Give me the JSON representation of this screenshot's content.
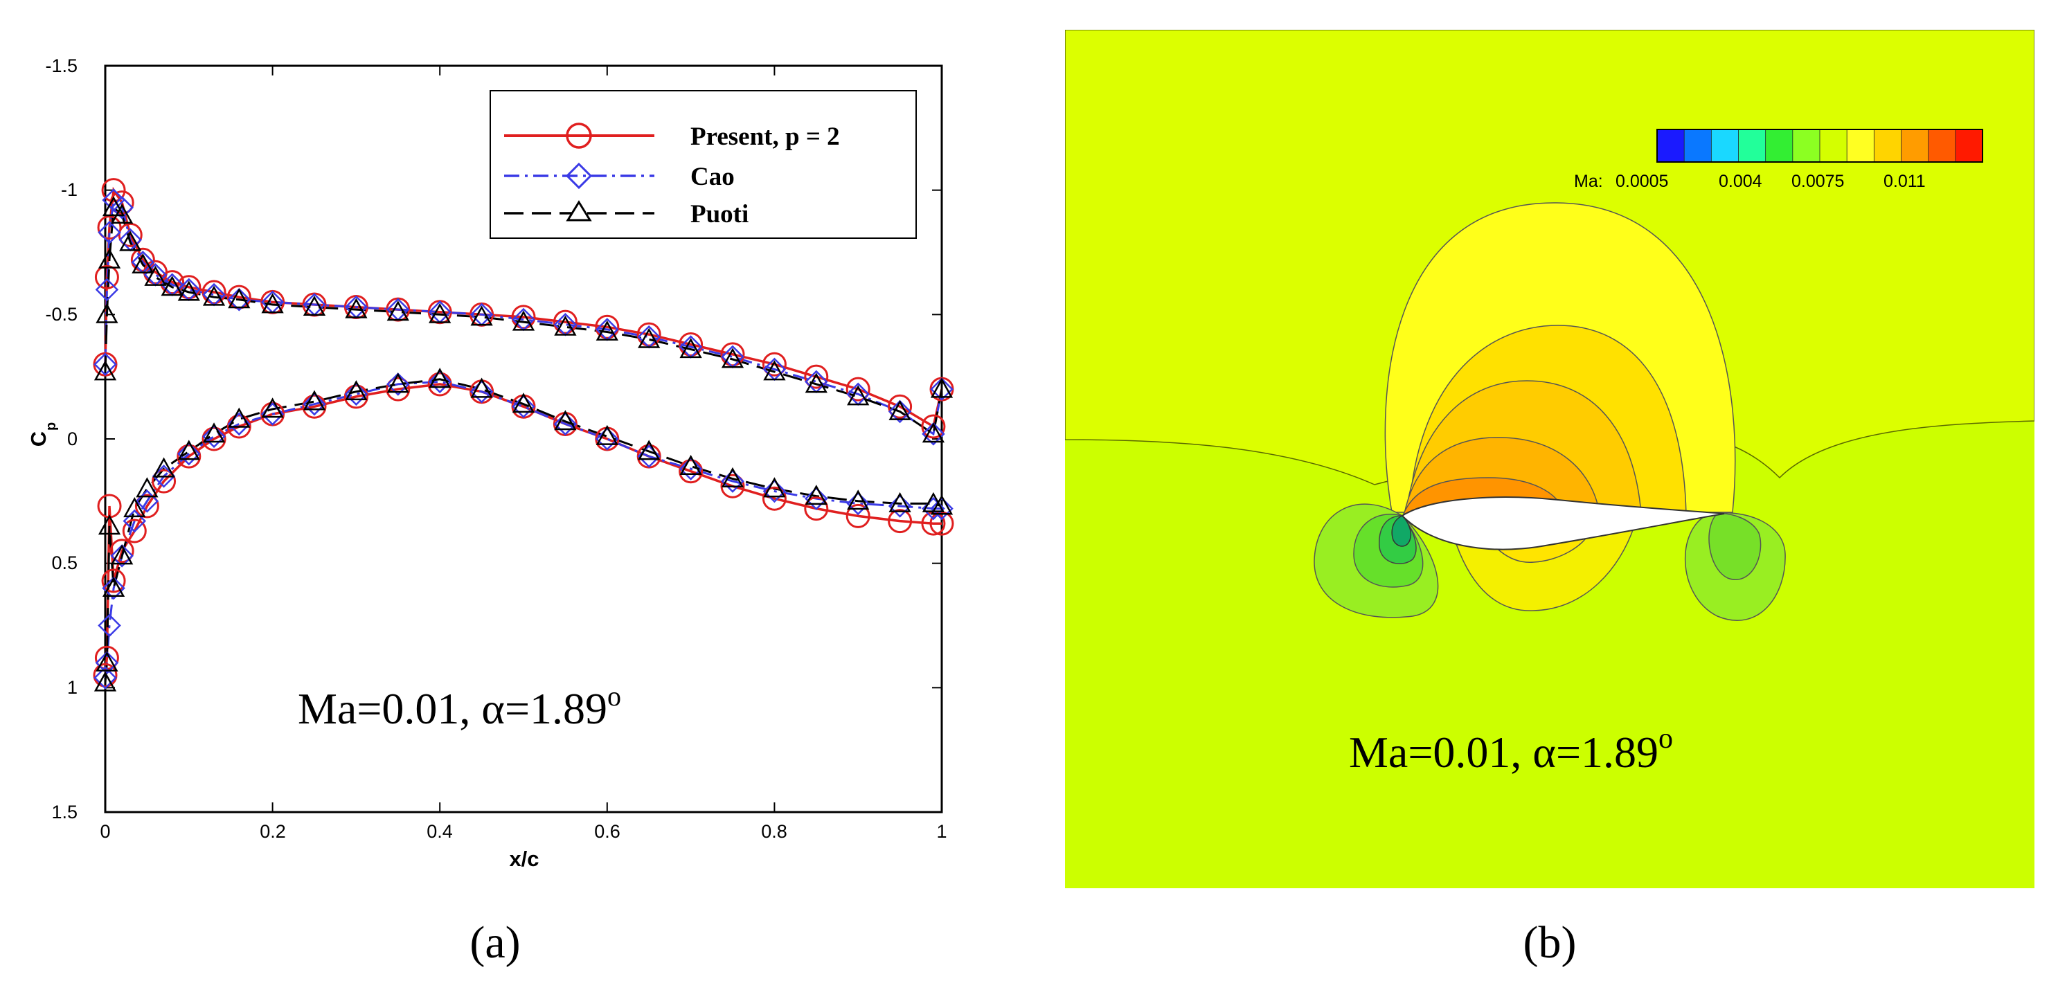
{
  "chart_data": [
    {
      "type": "line",
      "panel_label": "(a)",
      "xlabel": "x/c",
      "ylabel": "C",
      "ylabel_sub": "p",
      "xlim": [
        0,
        1
      ],
      "ylim": [
        -1.5,
        1.5
      ],
      "y_inverted": true,
      "xticks": [
        0,
        0.2,
        0.4,
        0.6,
        0.8,
        1
      ],
      "xtick_labels": [
        "0",
        "0.2",
        "0.4",
        "0.6",
        "0.8",
        "1"
      ],
      "yticks": [
        -1.5,
        -1,
        -0.5,
        0,
        0.5,
        1,
        1.5
      ],
      "ytick_labels": [
        "-1.5",
        "-1",
        "-0.5",
        "0",
        "0.5",
        "1",
        "1.5"
      ],
      "annotation": "Ma=0.01, α=1.89",
      "annotation_sup": "o",
      "legend_position": "top-right",
      "series": [
        {
          "name": "Present, p = 2",
          "color": "#e01f1f",
          "line": "solid",
          "marker": "circle",
          "upper": {
            "x": [
              0.0,
              0.002,
              0.005,
              0.01,
              0.02,
              0.03,
              0.045,
              0.06,
              0.08,
              0.1,
              0.13,
              0.16,
              0.2,
              0.25,
              0.3,
              0.35,
              0.4,
              0.45,
              0.5,
              0.55,
              0.6,
              0.65,
              0.7,
              0.75,
              0.8,
              0.85,
              0.9,
              0.95,
              0.99,
              1.0
            ],
            "y": [
              -0.3,
              -0.65,
              -0.85,
              -1.0,
              -0.95,
              -0.82,
              -0.72,
              -0.67,
              -0.63,
              -0.61,
              -0.59,
              -0.57,
              -0.55,
              -0.54,
              -0.53,
              -0.52,
              -0.51,
              -0.5,
              -0.49,
              -0.47,
              -0.45,
              -0.42,
              -0.38,
              -0.34,
              -0.3,
              -0.25,
              -0.2,
              -0.13,
              -0.05,
              -0.2
            ]
          },
          "lower": {
            "x": [
              0.0,
              0.002,
              0.005,
              0.01,
              0.02,
              0.035,
              0.05,
              0.07,
              0.1,
              0.13,
              0.16,
              0.2,
              0.25,
              0.3,
              0.35,
              0.4,
              0.45,
              0.5,
              0.55,
              0.6,
              0.65,
              0.7,
              0.75,
              0.8,
              0.85,
              0.9,
              0.95,
              0.99,
              1.0
            ],
            "y": [
              0.95,
              0.88,
              0.27,
              0.57,
              0.45,
              0.37,
              0.27,
              0.17,
              0.07,
              0.0,
              -0.05,
              -0.1,
              -0.13,
              -0.17,
              -0.2,
              -0.22,
              -0.19,
              -0.13,
              -0.06,
              0.0,
              0.07,
              0.13,
              0.19,
              0.24,
              0.28,
              0.31,
              0.33,
              0.34,
              0.34
            ]
          }
        },
        {
          "name": "Cao",
          "color": "#3a3ae6",
          "line": "dashdot",
          "marker": "diamond",
          "upper": {
            "x": [
              0.0,
              0.002,
              0.005,
              0.01,
              0.02,
              0.03,
              0.045,
              0.06,
              0.08,
              0.1,
              0.13,
              0.16,
              0.2,
              0.25,
              0.3,
              0.35,
              0.4,
              0.45,
              0.5,
              0.55,
              0.6,
              0.65,
              0.7,
              0.75,
              0.8,
              0.85,
              0.9,
              0.95,
              0.99,
              1.0
            ],
            "y": [
              -0.3,
              -0.6,
              -0.83,
              -0.96,
              -0.93,
              -0.8,
              -0.71,
              -0.66,
              -0.62,
              -0.6,
              -0.58,
              -0.56,
              -0.55,
              -0.54,
              -0.53,
              -0.52,
              -0.51,
              -0.5,
              -0.48,
              -0.46,
              -0.44,
              -0.41,
              -0.37,
              -0.33,
              -0.28,
              -0.23,
              -0.18,
              -0.11,
              -0.02,
              -0.2
            ]
          },
          "lower": {
            "x": [
              0.0,
              0.002,
              0.005,
              0.01,
              0.02,
              0.035,
              0.05,
              0.07,
              0.1,
              0.13,
              0.16,
              0.2,
              0.25,
              0.3,
              0.35,
              0.4,
              0.45,
              0.5,
              0.55,
              0.6,
              0.65,
              0.7,
              0.75,
              0.8,
              0.85,
              0.9,
              0.95,
              0.99,
              1.0
            ],
            "y": [
              0.96,
              0.9,
              0.75,
              0.6,
              0.47,
              0.33,
              0.25,
              0.15,
              0.06,
              -0.01,
              -0.06,
              -0.1,
              -0.14,
              -0.18,
              -0.22,
              -0.23,
              -0.19,
              -0.13,
              -0.06,
              0.0,
              0.07,
              0.12,
              0.17,
              0.21,
              0.24,
              0.26,
              0.27,
              0.28,
              0.28
            ]
          }
        },
        {
          "name": "Puoti",
          "color": "#000000",
          "line": "dash",
          "marker": "triangle",
          "upper": {
            "x": [
              0.0,
              0.002,
              0.005,
              0.01,
              0.02,
              0.03,
              0.045,
              0.06,
              0.08,
              0.1,
              0.13,
              0.16,
              0.2,
              0.25,
              0.3,
              0.35,
              0.4,
              0.45,
              0.5,
              0.55,
              0.6,
              0.65,
              0.7,
              0.75,
              0.8,
              0.85,
              0.9,
              0.95,
              0.99,
              1.0
            ],
            "y": [
              -0.27,
              -0.5,
              -0.72,
              -0.93,
              -0.9,
              -0.79,
              -0.7,
              -0.65,
              -0.61,
              -0.59,
              -0.57,
              -0.56,
              -0.54,
              -0.53,
              -0.52,
              -0.51,
              -0.5,
              -0.49,
              -0.47,
              -0.45,
              -0.43,
              -0.4,
              -0.36,
              -0.32,
              -0.27,
              -0.22,
              -0.17,
              -0.11,
              -0.02,
              -0.2
            ]
          },
          "lower": {
            "x": [
              0.0,
              0.002,
              0.005,
              0.01,
              0.02,
              0.035,
              0.05,
              0.07,
              0.1,
              0.13,
              0.16,
              0.2,
              0.25,
              0.3,
              0.35,
              0.4,
              0.45,
              0.5,
              0.55,
              0.6,
              0.65,
              0.7,
              0.75,
              0.8,
              0.85,
              0.9,
              0.95,
              0.99,
              1.0
            ],
            "y": [
              0.98,
              0.9,
              0.35,
              0.6,
              0.47,
              0.28,
              0.2,
              0.12,
              0.05,
              -0.02,
              -0.08,
              -0.12,
              -0.15,
              -0.19,
              -0.22,
              -0.24,
              -0.2,
              -0.14,
              -0.07,
              -0.01,
              0.05,
              0.11,
              0.16,
              0.2,
              0.23,
              0.25,
              0.26,
              0.26,
              0.27
            ]
          }
        }
      ]
    },
    {
      "type": "heatmap",
      "panel_label": "(b)",
      "colorbar_label": "Ma:",
      "colorbar_ticks": [
        "0.0005",
        "0.004",
        "0.0075",
        "0.011"
      ],
      "colorbar_colors": [
        "#1a1aff",
        "#0a78ff",
        "#1ad8ff",
        "#22ff9a",
        "#33ee33",
        "#8cff22",
        "#d4ff00",
        "#ffff22",
        "#ffd400",
        "#ff9c00",
        "#ff5a00",
        "#ff1a00"
      ],
      "background_color": "#ccff00",
      "annotation": "Ma=0.01,  α=1.89",
      "annotation_sup": "o"
    }
  ]
}
